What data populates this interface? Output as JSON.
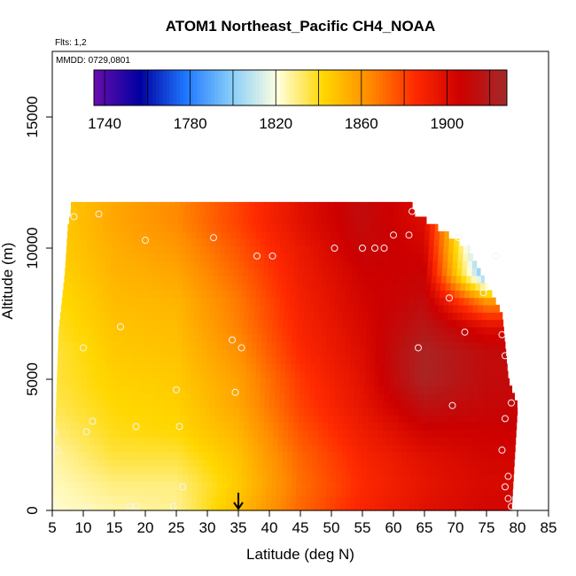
{
  "chart_data": {
    "type": "heatmap",
    "title": "ATOM1 Northeast_Pacific CH4_NOAA",
    "subtitle_flights": "Flts: 1,2",
    "subtitle_dates": "MMDD: 0729,0801",
    "xlabel": "Latitude (deg N)",
    "ylabel": "Altitude (m)",
    "xlim": [
      5,
      85
    ],
    "ylim": [
      0,
      17500
    ],
    "x_ticks": [
      "5",
      "10",
      "15",
      "20",
      "25",
      "30",
      "35",
      "40",
      "45",
      "50",
      "55",
      "60",
      "65",
      "70",
      "75",
      "80",
      "85"
    ],
    "y_ticks": [
      "0",
      "5000",
      "10000",
      "15000"
    ],
    "colorbar": {
      "range": [
        1735,
        1928
      ],
      "tick_labels": [
        "1740",
        "1780",
        "1820",
        "1860",
        "1900"
      ],
      "tick_values": [
        1740,
        1780,
        1820,
        1860,
        1900
      ],
      "colors": [
        "#6a0dad",
        "#0000a0",
        "#1f77ff",
        "#87cefa",
        "#ffffe0",
        "#ffd700",
        "#ff8c00",
        "#ff2a00",
        "#cc0000",
        "#a52a2a"
      ]
    },
    "marker": {
      "label": "arrow",
      "latitude": 35
    },
    "ch4_anchors": [
      {
        "latitude": 5,
        "values": [
          1822,
          1824,
          1826,
          1830,
          1834,
          1836,
          1836,
          1838,
          1840,
          1842,
          1844,
          1844
        ]
      },
      {
        "latitude": 15,
        "values": [
          1826,
          1830,
          1836,
          1840,
          1842,
          1844,
          1846,
          1848,
          1850,
          1852,
          1854,
          1856
        ]
      },
      {
        "latitude": 25,
        "values": [
          1828,
          1830,
          1836,
          1842,
          1844,
          1846,
          1848,
          1850,
          1852,
          1856,
          1860,
          1864
        ]
      },
      {
        "latitude": 35,
        "values": [
          1850,
          1846,
          1848,
          1852,
          1856,
          1858,
          1862,
          1866,
          1868,
          1872,
          1876,
          1880
        ]
      },
      {
        "latitude": 45,
        "values": [
          1872,
          1870,
          1872,
          1876,
          1880,
          1882,
          1886,
          1888,
          1890,
          1892,
          1894,
          1898
        ]
      },
      {
        "latitude": 55,
        "values": [
          1888,
          1886,
          1888,
          1892,
          1896,
          1898,
          1900,
          1902,
          1904,
          1906,
          1910,
          1912
        ]
      },
      {
        "latitude": 65,
        "values": [
          1898,
          1896,
          1898,
          1905,
          1915,
          1925,
          1925,
          1918,
          1912,
          1908,
          1904,
          1900
        ]
      },
      {
        "latitude": 75,
        "values": [
          1904,
          1902,
          1904,
          1906,
          1910,
          1912,
          1912,
          1900,
          1860,
          1790,
          1780,
          1780
        ]
      }
    ],
    "anchor_altitudes": [
      0,
      1000,
      2000,
      3000,
      4000,
      5000,
      6000,
      7000,
      8000,
      9000,
      10000,
      11000
    ],
    "coverage": {
      "lat_min": 5,
      "lat_max_by_altitude": [
        {
          "altitude": 0,
          "lat_max": 79
        },
        {
          "altitude": 4000,
          "lat_max": 80
        },
        {
          "altitude": 5000,
          "lat_max": 78.5
        },
        {
          "altitude": 7500,
          "lat_max": 77.5
        },
        {
          "altitude": 10000,
          "lat_max": 72
        },
        {
          "altitude": 10800,
          "lat_max": 67
        },
        {
          "altitude": 11400,
          "lat_max": 63
        }
      ],
      "lat_min_by_altitude": [
        {
          "altitude": 0,
          "lat_min": 5
        },
        {
          "altitude": 6800,
          "lat_min": 6
        },
        {
          "altitude": 9000,
          "lat_min": 7
        },
        {
          "altitude": 10800,
          "lat_min": 7.5
        },
        {
          "altitude": 11400,
          "lat_min": 8
        }
      ]
    },
    "sample_points": [
      {
        "latitude": 5.3,
        "altitude": 150
      },
      {
        "latitude": 10.5,
        "altitude": 150
      },
      {
        "latitude": 17.5,
        "altitude": 150
      },
      {
        "latitude": 18.5,
        "altitude": 150
      },
      {
        "latitude": 24.5,
        "altitude": 150
      },
      {
        "latitude": 26,
        "altitude": 900
      },
      {
        "latitude": 5.8,
        "altitude": 2300
      },
      {
        "latitude": 5.4,
        "altitude": 3000
      },
      {
        "latitude": 10.5,
        "altitude": 3000
      },
      {
        "latitude": 11.5,
        "altitude": 3400
      },
      {
        "latitude": 18.5,
        "altitude": 3200
      },
      {
        "latitude": 25.5,
        "altitude": 3200
      },
      {
        "latitude": 25,
        "altitude": 4600
      },
      {
        "latitude": 34.5,
        "altitude": 4500
      },
      {
        "latitude": 10,
        "altitude": 6200
      },
      {
        "latitude": 16,
        "altitude": 7000
      },
      {
        "latitude": 34,
        "altitude": 6500
      },
      {
        "latitude": 35.5,
        "altitude": 6200
      },
      {
        "latitude": 38,
        "altitude": 9700
      },
      {
        "latitude": 40.5,
        "altitude": 9700
      },
      {
        "latitude": 50.5,
        "altitude": 10000
      },
      {
        "latitude": 55,
        "altitude": 10000
      },
      {
        "latitude": 57,
        "altitude": 10000
      },
      {
        "latitude": 58.5,
        "altitude": 10000
      },
      {
        "latitude": 31,
        "altitude": 10400
      },
      {
        "latitude": 20,
        "altitude": 10300
      },
      {
        "latitude": 8.5,
        "altitude": 11200
      },
      {
        "latitude": 12.5,
        "altitude": 11300
      },
      {
        "latitude": 60,
        "altitude": 10500
      },
      {
        "latitude": 62.5,
        "altitude": 10500
      },
      {
        "latitude": 63,
        "altitude": 11400
      },
      {
        "latitude": 70.5,
        "altitude": 10400
      },
      {
        "latitude": 72,
        "altitude": 10000
      },
      {
        "latitude": 76.5,
        "altitude": 9700
      },
      {
        "latitude": 74.5,
        "altitude": 8300
      },
      {
        "latitude": 69,
        "altitude": 8100
      },
      {
        "latitude": 71.5,
        "altitude": 6800
      },
      {
        "latitude": 77.5,
        "altitude": 6700
      },
      {
        "latitude": 64,
        "altitude": 6200
      },
      {
        "latitude": 78,
        "altitude": 5900
      },
      {
        "latitude": 69.5,
        "altitude": 4000
      },
      {
        "latitude": 78,
        "altitude": 3500
      },
      {
        "latitude": 79,
        "altitude": 4100
      },
      {
        "latitude": 77.5,
        "altitude": 2300
      },
      {
        "latitude": 78.5,
        "altitude": 1300
      },
      {
        "latitude": 78,
        "altitude": 900
      },
      {
        "latitude": 78.5,
        "altitude": 450
      },
      {
        "latitude": 79,
        "altitude": 150
      }
    ]
  }
}
